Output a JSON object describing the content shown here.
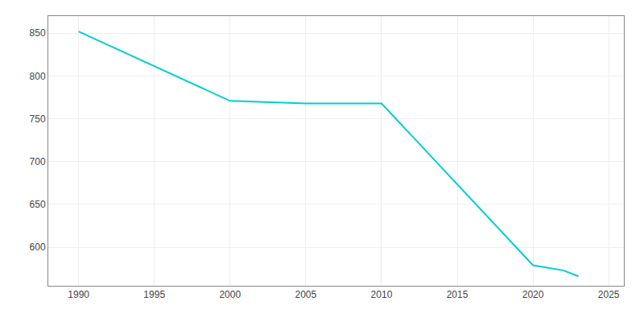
{
  "chart_data": {
    "type": "line",
    "x": [
      1990,
      2000,
      2005,
      2010,
      2020,
      2022,
      2023
    ],
    "values": [
      852,
      771,
      768,
      768,
      579,
      573,
      566
    ],
    "color": "#00CED1",
    "xlim": [
      1988,
      2026
    ],
    "ylim": [
      555,
      870
    ],
    "xticks": [
      1990,
      1995,
      2000,
      2005,
      2010,
      2015,
      2020,
      2025
    ],
    "yticks": [
      600,
      650,
      700,
      750,
      800,
      850
    ],
    "grid": true
  }
}
